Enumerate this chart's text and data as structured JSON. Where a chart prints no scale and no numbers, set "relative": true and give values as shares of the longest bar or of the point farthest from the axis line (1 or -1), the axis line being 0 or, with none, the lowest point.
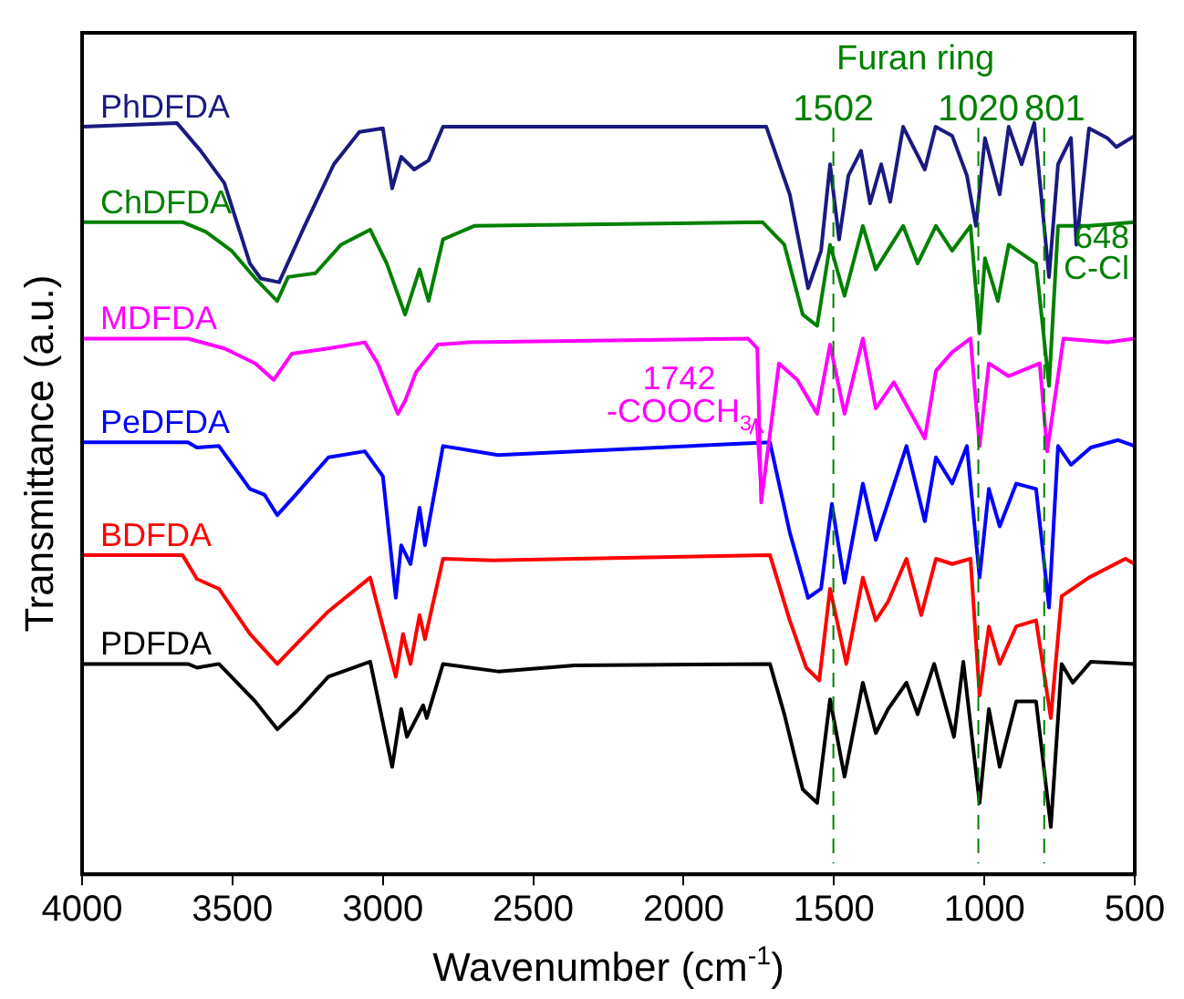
{
  "chart_data": {
    "type": "line",
    "relative": true,
    "xlabel": "Wavenumber (cm$^{-1}$)",
    "ylabel": "Transmittance (a.u.)",
    "xlim": [
      4000,
      500
    ],
    "xticks": [
      4000,
      3500,
      3000,
      2500,
      2000,
      1500,
      1000,
      500
    ],
    "grid": false,
    "legend": false,
    "marker": "none",
    "line_style": "solid",
    "series": [
      {
        "name": "PhDFDA",
        "color": "#1a1a80",
        "x": [
          4000,
          3685,
          3606,
          3527,
          3442,
          3406,
          3345,
          3260,
          3163,
          3078,
          3000,
          2969,
          2939,
          2896,
          2848,
          2800,
          1725,
          1647,
          1586,
          1543,
          1513,
          1483,
          1452,
          1410,
          1380,
          1343,
          1313,
          1270,
          1198,
          1162,
          1107,
          1058,
          1028,
          998,
          949,
          919,
          876,
          834,
          785,
          755,
          712,
          694,
          652,
          591,
          561,
          500
        ],
        "values": [
          0.995,
          1.0,
          0.963,
          0.92,
          0.813,
          0.793,
          0.788,
          0.863,
          0.945,
          0.988,
          0.993,
          0.913,
          0.955,
          0.938,
          0.95,
          0.995,
          0.995,
          0.905,
          0.78,
          0.83,
          0.945,
          0.845,
          0.93,
          0.963,
          0.893,
          0.945,
          0.895,
          0.995,
          0.938,
          0.995,
          0.983,
          0.93,
          0.863,
          0.98,
          0.905,
          0.995,
          0.945,
          1.0,
          0.795,
          0.945,
          0.98,
          0.838,
          0.993,
          0.98,
          0.968,
          0.983
        ]
      },
      {
        "name": "ChDFDA",
        "color": "#008000",
        "x": [
          4000,
          3666,
          3588,
          3503,
          3424,
          3351,
          3315,
          3224,
          3139,
          3042,
          2987,
          2926,
          2878,
          2848,
          2800,
          2696,
          1738,
          1665,
          1604,
          1556,
          1513,
          1465,
          1404,
          1361,
          1270,
          1222,
          1161,
          1107,
          1046,
          1016,
          998,
          955,
          919,
          828,
          785,
          755,
          652,
          500
        ],
        "values": [
          0.868,
          0.868,
          0.855,
          0.83,
          0.793,
          0.763,
          0.795,
          0.8,
          0.838,
          0.858,
          0.813,
          0.745,
          0.805,
          0.763,
          0.845,
          0.863,
          0.868,
          0.838,
          0.745,
          0.73,
          0.838,
          0.77,
          0.863,
          0.805,
          0.863,
          0.813,
          0.863,
          0.83,
          0.863,
          0.72,
          0.82,
          0.763,
          0.838,
          0.813,
          0.65,
          0.863,
          0.863,
          0.868
        ]
      },
      {
        "name": "MDFDA",
        "color": "#ff00ff",
        "x": [
          4000,
          3648,
          3527,
          3424,
          3363,
          3302,
          3181,
          3060,
          3017,
          2950,
          2926,
          2890,
          2817,
          2714,
          1786,
          1755,
          1742,
          1683,
          1622,
          1556,
          1513,
          1465,
          1404,
          1361,
          1301,
          1198,
          1161,
          1107,
          1046,
          1016,
          985,
          919,
          816,
          791,
          737,
          591,
          500
        ],
        "values": [
          0.713,
          0.713,
          0.7,
          0.68,
          0.658,
          0.693,
          0.7,
          0.708,
          0.68,
          0.613,
          0.63,
          0.668,
          0.705,
          0.708,
          0.713,
          0.7,
          0.495,
          0.68,
          0.658,
          0.613,
          0.705,
          0.613,
          0.713,
          0.62,
          0.655,
          0.58,
          0.67,
          0.695,
          0.713,
          0.57,
          0.68,
          0.663,
          0.68,
          0.563,
          0.713,
          0.708,
          0.713
        ]
      },
      {
        "name": "PeDFDA",
        "color": "#0000ff",
        "x": [
          4000,
          3648,
          3618,
          3545,
          3442,
          3393,
          3351,
          3290,
          3181,
          3060,
          3000,
          2957,
          2939,
          2908,
          2878,
          2860,
          2800,
          2617,
          1713,
          1647,
          1586,
          1543,
          1507,
          1465,
          1404,
          1361,
          1320,
          1259,
          1198,
          1161,
          1107,
          1058,
          1016,
          985,
          949,
          894,
          828,
          785,
          755,
          712,
          646,
          555,
          500
        ],
        "values": [
          0.575,
          0.575,
          0.568,
          0.57,
          0.513,
          0.505,
          0.478,
          0.505,
          0.555,
          0.563,
          0.53,
          0.368,
          0.438,
          0.413,
          0.488,
          0.438,
          0.57,
          0.558,
          0.575,
          0.455,
          0.368,
          0.38,
          0.493,
          0.388,
          0.52,
          0.445,
          0.495,
          0.57,
          0.47,
          0.555,
          0.52,
          0.57,
          0.395,
          0.513,
          0.463,
          0.52,
          0.513,
          0.355,
          0.57,
          0.545,
          0.568,
          0.578,
          0.57
        ]
      },
      {
        "name": "BDFDA",
        "color": "#ff0000",
        "x": [
          4000,
          3666,
          3618,
          3545,
          3442,
          3351,
          3284,
          3181,
          3042,
          2957,
          2933,
          2908,
          2878,
          2860,
          2800,
          2635,
          1713,
          1647,
          1592,
          1549,
          1513,
          1459,
          1404,
          1361,
          1320,
          1259,
          1210,
          1161,
          1107,
          1046,
          1016,
          985,
          949,
          894,
          828,
          779,
          743,
          652,
          531,
          500
        ],
        "values": [
          0.425,
          0.425,
          0.393,
          0.38,
          0.32,
          0.28,
          0.308,
          0.35,
          0.395,
          0.263,
          0.32,
          0.28,
          0.345,
          0.313,
          0.42,
          0.418,
          0.425,
          0.338,
          0.275,
          0.258,
          0.38,
          0.28,
          0.395,
          0.338,
          0.363,
          0.42,
          0.345,
          0.42,
          0.413,
          0.42,
          0.238,
          0.33,
          0.28,
          0.33,
          0.338,
          0.208,
          0.37,
          0.395,
          0.42,
          0.413
        ]
      },
      {
        "name": "PDFDA",
        "color": "#000000",
        "x": [
          4000,
          3648,
          3618,
          3545,
          3424,
          3351,
          3284,
          3181,
          3042,
          2969,
          2939,
          2920,
          2866,
          2854,
          2800,
          2617,
          2362,
          1713,
          1665,
          1604,
          1556,
          1513,
          1465,
          1404,
          1361,
          1320,
          1259,
          1222,
          1167,
          1101,
          1070,
          1016,
          985,
          949,
          894,
          828,
          779,
          743,
          706,
          646,
          500
        ],
        "values": [
          0.28,
          0.28,
          0.275,
          0.28,
          0.23,
          0.193,
          0.218,
          0.263,
          0.283,
          0.143,
          0.22,
          0.183,
          0.225,
          0.208,
          0.28,
          0.27,
          0.278,
          0.28,
          0.213,
          0.113,
          0.095,
          0.233,
          0.13,
          0.255,
          0.188,
          0.22,
          0.255,
          0.213,
          0.28,
          0.183,
          0.283,
          0.095,
          0.22,
          0.143,
          0.23,
          0.23,
          0.063,
          0.28,
          0.255,
          0.283,
          0.28
        ]
      }
    ],
    "ref_lines": [
      {
        "axis": "x",
        "value": 1502,
        "label": "1502",
        "color": "#008000",
        "line_style": "dashed"
      },
      {
        "axis": "x",
        "value": 1020,
        "label": "1020",
        "color": "#008000",
        "line_style": "dashed"
      },
      {
        "axis": "x",
        "value": 801,
        "label": "801",
        "color": "#008000",
        "line_style": "dashed"
      }
    ],
    "annotations": [
      "Furan ring",
      "648\nC-Cl",
      {
        "text": "1742\n-COOCH$_{3}$",
        "x": 1742,
        "y": 0.495
      }
    ]
  }
}
